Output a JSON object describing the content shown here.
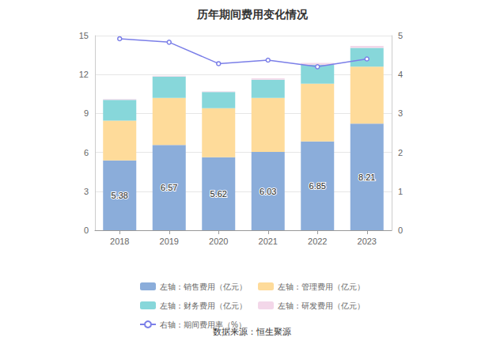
{
  "chart_data": {
    "type": "bar",
    "title": "历年期间费用变化情况",
    "source": "数据来源：恒生聚源",
    "categories": [
      "2018",
      "2019",
      "2020",
      "2021",
      "2022",
      "2023"
    ],
    "stacked": true,
    "grid": true,
    "legend": "bottom",
    "ylim": [
      0,
      15
    ],
    "yticks": [
      0,
      3,
      6,
      9,
      12,
      15
    ],
    "y2lim": [
      0,
      5
    ],
    "y2ticks": [
      0,
      1,
      2,
      3,
      4,
      5
    ],
    "series": [
      {
        "name": "左轴：销售费用（亿元）",
        "type": "bar",
        "color": "#8badda",
        "data_labels": true,
        "values": [
          5.38,
          6.57,
          5.62,
          6.03,
          6.85,
          8.21
        ]
      },
      {
        "name": "左轴：管理费用（亿元）",
        "type": "bar",
        "color": "#fedb9a",
        "values": [
          3.07,
          3.63,
          3.78,
          4.17,
          4.45,
          4.39
        ]
      },
      {
        "name": "左轴：财务费用（亿元）",
        "type": "bar",
        "color": "#87d7da",
        "values": [
          1.6,
          1.65,
          1.25,
          1.4,
          1.45,
          1.45
        ]
      },
      {
        "name": "左轴：研发费用（亿元）",
        "type": "bar",
        "color": "#f3d7e9",
        "values": [
          0.05,
          0.05,
          0.05,
          0.1,
          0.15,
          0.15
        ]
      },
      {
        "name": "右轴：期间费用率（%）",
        "type": "line",
        "axis": "y2",
        "color": "#7b7fe8",
        "marker": "circle",
        "values": [
          4.92,
          4.83,
          4.28,
          4.37,
          4.2,
          4.4
        ]
      }
    ]
  }
}
